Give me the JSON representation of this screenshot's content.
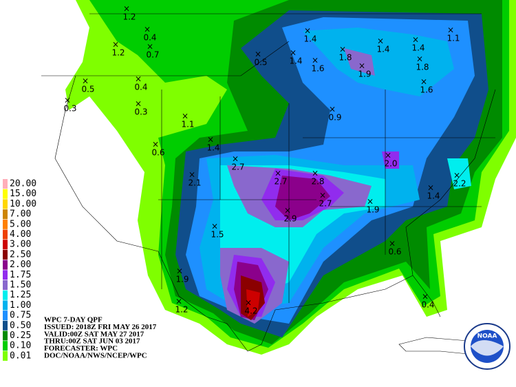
{
  "legend": [
    {
      "label": "20.00",
      "color": "#ffaeb9"
    },
    {
      "label": "15.00",
      "color": "#ffff00"
    },
    {
      "label": "10.00",
      "color": "#ffd700"
    },
    {
      "label": "7.00",
      "color": "#cd8500"
    },
    {
      "label": "5.00",
      "color": "#ff7f00"
    },
    {
      "label": "4.00",
      "color": "#ee4000"
    },
    {
      "label": "3.00",
      "color": "#cd0000"
    },
    {
      "label": "2.50",
      "color": "#8b0000"
    },
    {
      "label": "2.00",
      "color": "#8b008b"
    },
    {
      "label": "1.75",
      "color": "#912cee"
    },
    {
      "label": "1.50",
      "color": "#8968cd"
    },
    {
      "label": "1.25",
      "color": "#00eeee"
    },
    {
      "label": "1.00",
      "color": "#00b2ee"
    },
    {
      "label": "0.75",
      "color": "#1e90ff"
    },
    {
      "label": "0.50",
      "color": "#104e8b"
    },
    {
      "label": "0.25",
      "color": "#008b00"
    },
    {
      "label": "0.10",
      "color": "#00cd00"
    },
    {
      "label": "0.01",
      "color": "#7fff00"
    }
  ],
  "header": [
    "WPC 7-DAY QPF",
    "ISSUED: 2018Z FRI MAY 26 2017",
    "VALID:00Z SAT MAY 27 2017",
    "THRU:00Z SAT JUN 03 2017",
    "FORECASTER: WPC",
    "DOC/NOAA/NWS/NCEP/WPC"
  ],
  "points": [
    "1.2",
    "0.4",
    "1.2",
    "0.7",
    "0.5",
    "0.4",
    "0.3",
    "0.3",
    "1.1",
    "0.6",
    "1.4",
    "2.7",
    "2.1",
    "2.7",
    "2.8",
    "2.7",
    "2.9",
    "1.5",
    "1.9",
    "2.0",
    "2.2",
    "1.4",
    "0.6",
    "1.9",
    "1.2",
    "4.2",
    "0.4",
    "1.4",
    "1.4",
    "0.5",
    "1.6",
    "1.8",
    "1.9",
    "1.4",
    "1.4",
    "1.8",
    "1.1",
    "1.6",
    "0.9"
  ],
  "logo": "NOAA"
}
